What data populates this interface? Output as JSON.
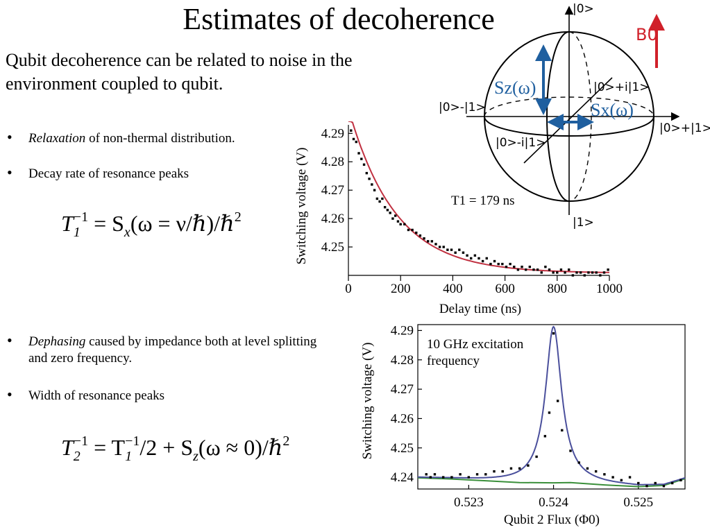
{
  "title": "Estimates of decoherence",
  "intro": "Qubit decoherence can be related to noise in the environment coupled to qubit.",
  "bullets": [
    {
      "italic": "Relaxation",
      "rest": " of non-thermal distribution."
    },
    {
      "italic": "",
      "rest": "Decay rate of resonance peaks"
    },
    {
      "italic": "Dephasing",
      "rest": " caused by impedance both at level splitting and zero frequency."
    },
    {
      "italic": "",
      "rest": "Width of resonance peaks"
    }
  ],
  "bullet_char": "•",
  "equations": {
    "t1": {
      "lhs": "T",
      "lhs_sub": "1",
      "lhs_sup": "−1",
      "rhs": "= S",
      "rhs_sub": "x",
      "rhs_arg": "(ω = ν/ℏ)/ℏ",
      "rhs_sup": "2"
    },
    "t2": {
      "lhs": "T",
      "lhs_sub": "2",
      "lhs_sup": "−1",
      "mid": "= T",
      "mid_sub": "1",
      "mid_sup": "−1",
      "mid_rest": "/2 + S",
      "rhs_sub": "z",
      "rhs_arg": "(ω ≈ 0)/ℏ",
      "rhs_sup": "2"
    }
  },
  "bloch": {
    "top": "|0>",
    "bottom": "|1>",
    "right": "|0>+|1>",
    "left": "|0>-|1>",
    "back": "|0>+i|1>",
    "front": "|0>-i|1>",
    "sz": "Sz(ω)",
    "sx": "Sx(ω)",
    "b0": "B0",
    "colors": {
      "field": "#d0202a",
      "noise": "#1f5f9f",
      "sphere": "#000000"
    }
  },
  "chart_data": [
    {
      "type": "scatter",
      "xlabel": "Delay time (ns)",
      "ylabel": "Switching voltage (V)",
      "xlim": [
        0,
        1000
      ],
      "ylim": [
        4.24,
        4.293
      ],
      "xticks": [
        0,
        200,
        400,
        600,
        800,
        1000
      ],
      "yticks": [
        4.25,
        4.26,
        4.27,
        4.28,
        4.29
      ],
      "annotation": "T1 = 179 ns",
      "fit": {
        "name": "",
        "color": "#c03040",
        "type": "exponential",
        "amplitude": 0.058,
        "tau": 179,
        "offset": 4.2408,
        "t0": 0
      },
      "points": [
        [
          10,
          4.291
        ],
        [
          20,
          4.288
        ],
        [
          30,
          4.287
        ],
        [
          40,
          4.283
        ],
        [
          50,
          4.281
        ],
        [
          60,
          4.279
        ],
        [
          70,
          4.276
        ],
        [
          80,
          4.274
        ],
        [
          90,
          4.272
        ],
        [
          100,
          4.27
        ],
        [
          110,
          4.267
        ],
        [
          120,
          4.266
        ],
        [
          130,
          4.267
        ],
        [
          140,
          4.264
        ],
        [
          150,
          4.263
        ],
        [
          160,
          4.262
        ],
        [
          170,
          4.26
        ],
        [
          180,
          4.261
        ],
        [
          190,
          4.259
        ],
        [
          200,
          4.258
        ],
        [
          215,
          4.258
        ],
        [
          230,
          4.256
        ],
        [
          245,
          4.256
        ],
        [
          260,
          4.255
        ],
        [
          275,
          4.254
        ],
        [
          290,
          4.253
        ],
        [
          305,
          4.252
        ],
        [
          320,
          4.252
        ],
        [
          335,
          4.251
        ],
        [
          350,
          4.25
        ],
        [
          365,
          4.25
        ],
        [
          380,
          4.249
        ],
        [
          395,
          4.249
        ],
        [
          410,
          4.248
        ],
        [
          425,
          4.249
        ],
        [
          440,
          4.248
        ],
        [
          455,
          4.247
        ],
        [
          470,
          4.246
        ],
        [
          485,
          4.247
        ],
        [
          500,
          4.246
        ],
        [
          515,
          4.245
        ],
        [
          530,
          4.246
        ],
        [
          545,
          4.244
        ],
        [
          560,
          4.245
        ],
        [
          575,
          4.244
        ],
        [
          590,
          4.244
        ],
        [
          605,
          4.243
        ],
        [
          620,
          4.244
        ],
        [
          635,
          4.243
        ],
        [
          650,
          4.242
        ],
        [
          665,
          4.243
        ],
        [
          680,
          4.242
        ],
        [
          695,
          4.243
        ],
        [
          710,
          4.242
        ],
        [
          725,
          4.242
        ],
        [
          740,
          4.241
        ],
        [
          755,
          4.243
        ],
        [
          770,
          4.242
        ],
        [
          785,
          4.241
        ],
        [
          800,
          4.241
        ],
        [
          815,
          4.242
        ],
        [
          830,
          4.241
        ],
        [
          845,
          4.242
        ],
        [
          860,
          4.24
        ],
        [
          875,
          4.241
        ],
        [
          890,
          4.241
        ],
        [
          905,
          4.24
        ],
        [
          920,
          4.241
        ],
        [
          935,
          4.241
        ],
        [
          950,
          4.241
        ],
        [
          965,
          4.24
        ],
        [
          980,
          4.241
        ],
        [
          995,
          4.242
        ]
      ]
    },
    {
      "type": "scatter",
      "xlabel": "Qubit 2 Flux (Φ0)",
      "ylabel": "Switching voltage (V)",
      "xlim": [
        0.5224,
        0.52555
      ],
      "ylim": [
        4.236,
        4.292
      ],
      "xticks": [
        0.523,
        0.524,
        0.525
      ],
      "xticklabels": [
        "0.523",
        "0.524",
        "0.525"
      ],
      "yticks": [
        4.24,
        4.25,
        4.26,
        4.27,
        4.28,
        4.29
      ],
      "annotation_lines": [
        "10 GHz excitation",
        "frequency"
      ],
      "fit_lorentzian": {
        "name": "",
        "color": "#4a4f9c",
        "center": 0.524,
        "height": 0.0532,
        "hwhm": 0.000115
      },
      "baseline": {
        "name": "",
        "color": "#3a8f3a",
        "x": [
          0.5224,
          0.5228,
          0.5232,
          0.5236,
          0.524,
          0.5242,
          0.5246,
          0.525,
          0.5253,
          0.52555
        ],
        "y": [
          4.2398,
          4.2394,
          4.2388,
          4.2382,
          4.2381,
          4.2382,
          4.2374,
          4.2368,
          4.2372,
          4.2395
        ]
      },
      "points": [
        [
          0.5225,
          4.241
        ],
        [
          0.52255,
          4.24
        ],
        [
          0.5226,
          4.241
        ],
        [
          0.5227,
          4.24
        ],
        [
          0.5228,
          4.24
        ],
        [
          0.5229,
          4.241
        ],
        [
          0.523,
          4.24
        ],
        [
          0.5231,
          4.241
        ],
        [
          0.5232,
          4.241
        ],
        [
          0.5233,
          4.242
        ],
        [
          0.5234,
          4.242
        ],
        [
          0.5235,
          4.243
        ],
        [
          0.5236,
          4.243
        ],
        [
          0.5237,
          4.244
        ],
        [
          0.5238,
          4.247
        ],
        [
          0.5239,
          4.254
        ],
        [
          0.52395,
          4.262
        ],
        [
          0.524,
          4.289
        ],
        [
          0.52405,
          4.266
        ],
        [
          0.5241,
          4.256
        ],
        [
          0.5242,
          4.249
        ],
        [
          0.5243,
          4.245
        ],
        [
          0.5244,
          4.243
        ],
        [
          0.5245,
          4.242
        ],
        [
          0.5246,
          4.241
        ],
        [
          0.5247,
          4.24
        ],
        [
          0.5248,
          4.239
        ],
        [
          0.5249,
          4.24
        ],
        [
          0.525,
          4.238
        ],
        [
          0.5251,
          4.237
        ],
        [
          0.5252,
          4.238
        ],
        [
          0.5253,
          4.237
        ],
        [
          0.5254,
          4.238
        ],
        [
          0.5255,
          4.239
        ]
      ]
    }
  ]
}
